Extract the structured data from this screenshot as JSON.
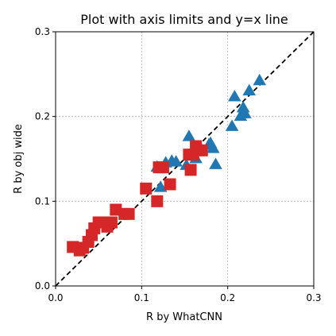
{
  "chart_data": {
    "type": "scatter",
    "title": "Plot with axis limits and y=x line",
    "xlabel": "R by WhatCNN",
    "ylabel": "R by obj wide",
    "xlim": [
      0.0,
      0.3
    ],
    "ylim": [
      0.0,
      0.3
    ],
    "x_ticks": [
      "0.0",
      "0.1",
      "0.2",
      "0.3"
    ],
    "y_ticks": [
      "0.0",
      "0.1",
      "0.2",
      "0.3"
    ],
    "grid": true,
    "reference_line": {
      "type": "y=x",
      "style": "dashed",
      "color": "#000000"
    },
    "series": [
      {
        "marker": "triangle",
        "color": "#1f77b4",
        "points": [
          [
            0.118,
            0.14
          ],
          [
            0.122,
            0.116
          ],
          [
            0.128,
            0.145
          ],
          [
            0.135,
            0.147
          ],
          [
            0.14,
            0.146
          ],
          [
            0.152,
            0.142
          ],
          [
            0.155,
            0.176
          ],
          [
            0.163,
            0.15
          ],
          [
            0.17,
            0.16
          ],
          [
            0.178,
            0.166
          ],
          [
            0.18,
            0.168
          ],
          [
            0.183,
            0.162
          ],
          [
            0.186,
            0.143
          ],
          [
            0.205,
            0.188
          ],
          [
            0.208,
            0.223
          ],
          [
            0.215,
            0.2
          ],
          [
            0.218,
            0.21
          ],
          [
            0.22,
            0.203
          ],
          [
            0.225,
            0.23
          ],
          [
            0.237,
            0.242
          ]
        ]
      },
      {
        "marker": "square",
        "color": "#d62728",
        "points": [
          [
            0.02,
            0.046
          ],
          [
            0.028,
            0.042
          ],
          [
            0.032,
            0.045
          ],
          [
            0.038,
            0.052
          ],
          [
            0.042,
            0.06
          ],
          [
            0.045,
            0.068
          ],
          [
            0.05,
            0.075
          ],
          [
            0.055,
            0.075
          ],
          [
            0.06,
            0.07
          ],
          [
            0.065,
            0.075
          ],
          [
            0.07,
            0.09
          ],
          [
            0.08,
            0.085
          ],
          [
            0.085,
            0.085
          ],
          [
            0.105,
            0.115
          ],
          [
            0.118,
            0.1
          ],
          [
            0.12,
            0.14
          ],
          [
            0.125,
            0.14
          ],
          [
            0.133,
            0.12
          ],
          [
            0.155,
            0.155
          ],
          [
            0.157,
            0.137
          ],
          [
            0.16,
            0.155
          ],
          [
            0.163,
            0.165
          ],
          [
            0.17,
            0.16
          ]
        ]
      }
    ]
  }
}
